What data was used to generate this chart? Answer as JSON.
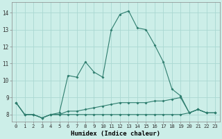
{
  "xlabel": "Humidex (Indice chaleur)",
  "line_color": "#2e7d6e",
  "bg_color": "#cceee8",
  "grid_color": "#aad8d2",
  "series": [
    {
      "x": [
        0,
        1,
        2,
        3,
        4,
        5,
        6,
        7,
        8,
        9,
        10,
        11,
        12,
        13,
        14,
        15,
        16,
        17,
        18,
        19,
        20,
        21,
        22,
        23
      ],
      "y": [
        8.7,
        8.0,
        8.0,
        7.8,
        8.0,
        8.1,
        10.3,
        10.2,
        11.1,
        10.5,
        10.2,
        13.0,
        13.9,
        14.1,
        13.1,
        13.0,
        12.1,
        11.1,
        9.5,
        9.1,
        8.1,
        8.3,
        8.1,
        8.1
      ]
    },
    {
      "x": [
        0,
        1,
        2,
        3,
        4,
        5,
        6,
        7,
        8,
        9,
        10,
        11,
        12,
        13,
        14,
        15,
        16,
        17,
        18,
        19,
        20,
        21,
        22,
        23
      ],
      "y": [
        8.7,
        8.0,
        8.0,
        7.8,
        8.0,
        8.0,
        8.2,
        8.2,
        8.3,
        8.4,
        8.5,
        8.6,
        8.7,
        8.7,
        8.7,
        8.7,
        8.8,
        8.8,
        8.9,
        9.0,
        8.1,
        8.3,
        8.1,
        8.1
      ]
    },
    {
      "x": [
        0,
        1,
        2,
        3,
        4,
        5,
        6,
        7,
        8,
        9,
        10,
        11,
        12,
        13,
        14,
        15,
        16,
        17,
        18,
        19,
        20,
        21,
        22,
        23
      ],
      "y": [
        8.7,
        8.0,
        8.0,
        7.8,
        8.0,
        8.0,
        8.0,
        8.0,
        8.0,
        8.0,
        8.0,
        8.0,
        8.0,
        8.0,
        8.0,
        8.0,
        8.0,
        8.0,
        8.0,
        8.0,
        8.1,
        8.3,
        8.1,
        8.1
      ]
    }
  ],
  "ylim": [
    7.6,
    14.6
  ],
  "xlim": [
    -0.5,
    23.5
  ],
  "yticks": [
    8,
    9,
    10,
    11,
    12,
    13,
    14
  ],
  "xticks": [
    0,
    1,
    2,
    3,
    4,
    5,
    6,
    7,
    8,
    9,
    10,
    11,
    12,
    13,
    14,
    15,
    16,
    17,
    18,
    19,
    20,
    21,
    22,
    23
  ],
  "tick_labelsize": 5.5,
  "xlabel_fontsize": 6.5,
  "marker_size": 2.0,
  "linewidth": 0.8
}
